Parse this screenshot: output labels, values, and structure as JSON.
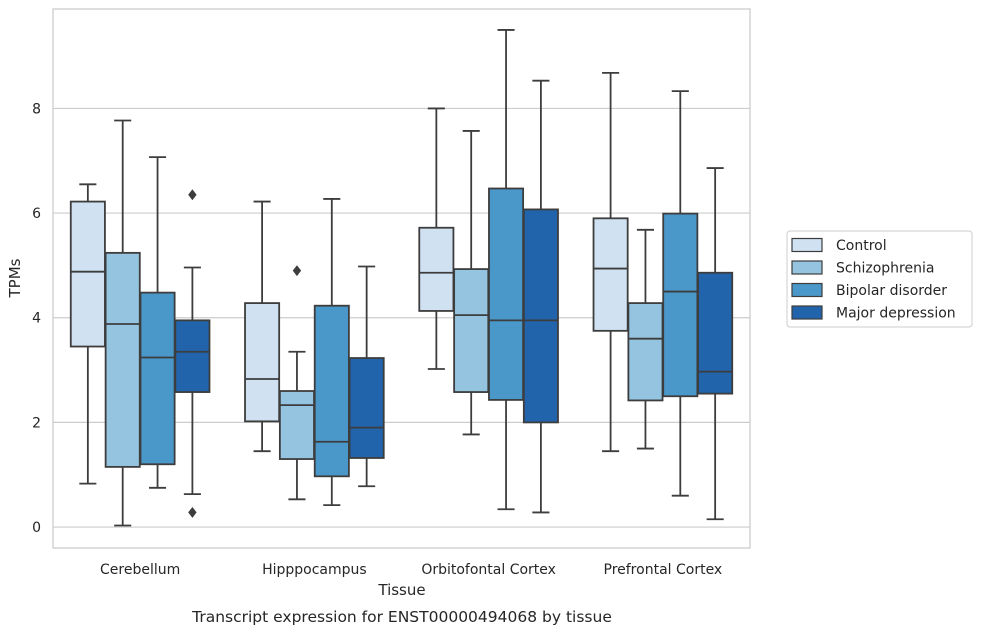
{
  "chart_data": {
    "type": "box",
    "xlabel": "Tissue",
    "ylabel": "TPMs",
    "caption": "Transcript expression for ENST00000494068 by tissue",
    "ylim": [
      -0.4,
      9.9
    ],
    "yticks": [
      0,
      2,
      4,
      6,
      8
    ],
    "grid": "horizontal",
    "legend_position": "center-right, outside plot",
    "categories": [
      "Cerebellum",
      "Hipppocampus",
      "Orbitofontal Cortex",
      "Prefrontal Cortex"
    ],
    "series": [
      {
        "name": "Control",
        "color": "#d0e1f2",
        "boxes": [
          {
            "whislo": 0.83,
            "q1": 3.45,
            "med": 4.88,
            "q3": 6.22,
            "whishi": 6.55,
            "fliers": []
          },
          {
            "whislo": 1.45,
            "q1": 2.02,
            "med": 2.83,
            "q3": 4.28,
            "whishi": 6.22,
            "fliers": []
          },
          {
            "whislo": 3.02,
            "q1": 4.13,
            "med": 4.86,
            "q3": 5.72,
            "whishi": 8.0,
            "fliers": []
          },
          {
            "whislo": 1.45,
            "q1": 3.75,
            "med": 4.94,
            "q3": 5.9,
            "whishi": 8.68,
            "fliers": []
          }
        ]
      },
      {
        "name": "Schizophrenia",
        "color": "#94c4df",
        "boxes": [
          {
            "whislo": 0.03,
            "q1": 1.15,
            "med": 3.88,
            "q3": 5.24,
            "whishi": 7.77,
            "fliers": []
          },
          {
            "whislo": 0.53,
            "q1": 1.3,
            "med": 2.33,
            "q3": 2.6,
            "whishi": 3.35,
            "fliers": [
              4.9
            ]
          },
          {
            "whislo": 1.77,
            "q1": 2.58,
            "med": 4.05,
            "q3": 4.93,
            "whishi": 7.57,
            "fliers": []
          },
          {
            "whislo": 1.5,
            "q1": 2.42,
            "med": 3.6,
            "q3": 4.28,
            "whishi": 5.68,
            "fliers": []
          }
        ]
      },
      {
        "name": "Bipolar disorder",
        "color": "#4a98c9",
        "boxes": [
          {
            "whislo": 0.75,
            "q1": 1.2,
            "med": 3.24,
            "q3": 4.48,
            "whishi": 7.07,
            "fliers": []
          },
          {
            "whislo": 0.42,
            "q1": 0.97,
            "med": 1.63,
            "q3": 4.23,
            "whishi": 6.27,
            "fliers": []
          },
          {
            "whislo": 0.34,
            "q1": 2.43,
            "med": 3.95,
            "q3": 6.47,
            "whishi": 9.5,
            "fliers": []
          },
          {
            "whislo": 0.6,
            "q1": 2.5,
            "med": 4.5,
            "q3": 5.99,
            "whishi": 8.33,
            "fliers": []
          }
        ]
      },
      {
        "name": "Major depression",
        "color": "#2164ab",
        "boxes": [
          {
            "whislo": 0.63,
            "q1": 2.58,
            "med": 3.35,
            "q3": 3.95,
            "whishi": 4.96,
            "fliers": [
              0.28,
              6.35
            ]
          },
          {
            "whislo": 0.78,
            "q1": 1.32,
            "med": 1.9,
            "q3": 3.23,
            "whishi": 4.98,
            "fliers": []
          },
          {
            "whislo": 0.28,
            "q1": 2.0,
            "med": 3.95,
            "q3": 6.07,
            "whishi": 8.53,
            "fliers": []
          },
          {
            "whislo": 0.15,
            "q1": 2.55,
            "med": 2.97,
            "q3": 4.86,
            "whishi": 6.86,
            "fliers": []
          }
        ]
      }
    ]
  }
}
